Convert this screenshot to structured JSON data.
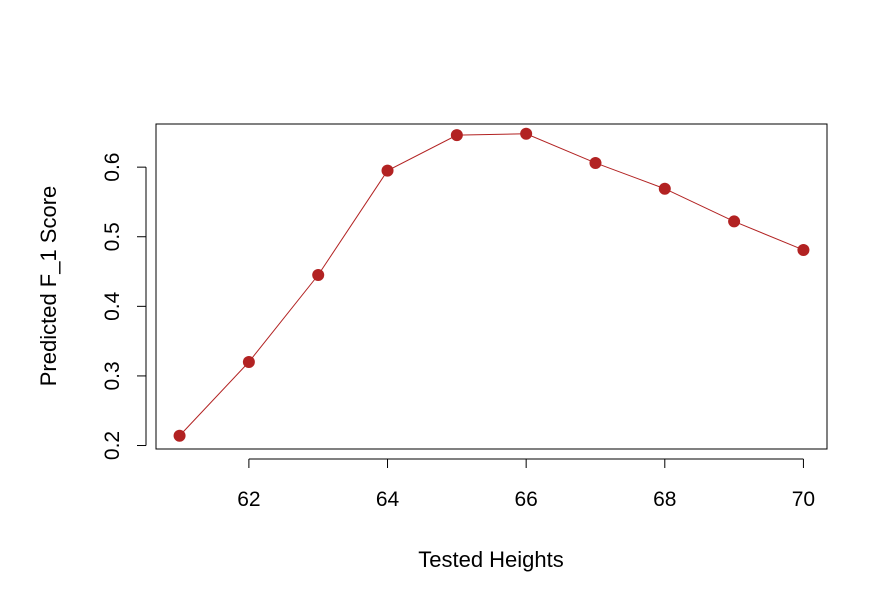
{
  "chart_data": {
    "type": "line",
    "title": "",
    "xlabel": "Tested Heights",
    "ylabel": "Predicted F_1 Score",
    "x": [
      61,
      62,
      63,
      64,
      65,
      66,
      67,
      68,
      69,
      70
    ],
    "series": [
      {
        "values": [
          0.214,
          0.32,
          0.445,
          0.595,
          0.646,
          0.648,
          0.606,
          0.569,
          0.522,
          0.481
        ],
        "color": "#B22222"
      }
    ],
    "xlim": [
      60.66,
      70.34
    ],
    "ylim": [
      0.195,
      0.662
    ],
    "x_ticks": [
      62,
      64,
      66,
      68,
      70
    ],
    "x_tick_labels": [
      "62",
      "64",
      "66",
      "68",
      "70"
    ],
    "y_ticks": [
      0.2,
      0.3,
      0.4,
      0.5,
      0.6
    ],
    "y_tick_labels": [
      "0.2",
      "0.3",
      "0.4",
      "0.5",
      "0.6"
    ],
    "grid": false,
    "legend": "none",
    "point_shape": "filled-circle"
  }
}
